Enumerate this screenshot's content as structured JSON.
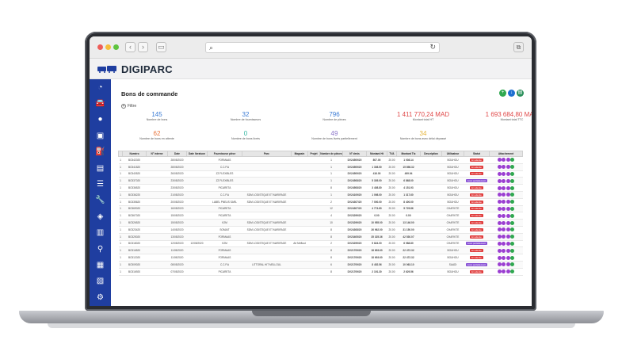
{
  "app": {
    "logo_text": "DIGIPARC",
    "page_title": "Bons de commande",
    "filter_label": "Filtre"
  },
  "browser": {
    "url": ""
  },
  "sidebar": {
    "items": [
      "dashboard-icon",
      "car-icon",
      "user-icon",
      "bus-icon",
      "fuel-icon",
      "document-icon",
      "list-icon",
      "wrench-icon",
      "layers-icon",
      "building-icon",
      "map-pin-icon",
      "truck-icon",
      "file-icon",
      "gear-icon"
    ]
  },
  "actions": [
    {
      "name": "add-button",
      "glyph": "+",
      "color": "#2fa84f"
    },
    {
      "name": "export-button",
      "glyph": "↓",
      "color": "#1f6fd1"
    },
    {
      "name": "print-button",
      "glyph": "▤",
      "color": "#2a8f5a"
    }
  ],
  "stats": [
    {
      "value": "145",
      "label": "Nombre de bons",
      "color": "#3a7bd5"
    },
    {
      "value": "32",
      "label": "Nombre de fournisseurs",
      "color": "#3a7bd5"
    },
    {
      "value": "796",
      "label": "Nombre de pièces",
      "color": "#3a7bd5"
    },
    {
      "value": "1 411 770,24 MAD",
      "label": "Montant total HT",
      "color": "#e04848"
    },
    {
      "value": "1 693 684,80 MAD",
      "label": "Montant total TTC",
      "color": "#e04848"
    },
    {
      "value": "62",
      "label": "Nombre de bons en attente",
      "color": "#e8733a"
    },
    {
      "value": "0",
      "label": "Nombre de bons livrés",
      "color": "#2fb5a0"
    },
    {
      "value": "49",
      "label": "Nombre de bons livrés partiellement",
      "color": "#8a73c9"
    },
    {
      "value": "34",
      "label": "Nombre de bons avec délai dépassé",
      "color": "#e6b43a"
    }
  ],
  "table": {
    "headers": [
      "",
      "Numéro",
      "N° interne",
      "Date",
      "Date livraison",
      "Fournisseur pièce",
      "Parc",
      "Magasin",
      "Projet",
      "Nombre de pièces",
      "N° devis",
      "Montant Ht",
      "TVA",
      "Montant Ttc",
      "Description",
      "Utilisateur",
      "Statut",
      "Attachement"
    ],
    "rows": [
      [
        "1",
        "BC542020",
        "",
        "28/05/2020",
        "",
        "FORMAAS",
        "",
        "",
        "",
        "1",
        "DV24509/20",
        "807.00",
        "20.00",
        "1 008.14",
        "",
        "BOUHOU",
        "En attente"
      ],
      [
        "1",
        "BC541820",
        "",
        "28/05/2020",
        "",
        "C.C.P.A",
        "",
        "",
        "",
        "1",
        "DV24509/20",
        "1 308.50",
        "20.00",
        "15 898.32",
        "",
        "BOUHOU",
        "En attente"
      ],
      [
        "1",
        "BC540520",
        "",
        "26/05/2020",
        "",
        "ZZ FLEXIBLES",
        "",
        "",
        "",
        "1",
        "DV24509/20",
        "416.00",
        "20.00",
        "499.94",
        "",
        "BOUHOU",
        "En attente"
      ],
      [
        "1",
        "BC537020",
        "",
        "23/05/2020",
        "",
        "ZZ FLEXIBLES",
        "",
        "",
        "",
        "1",
        "DV24508/20",
        "5 305.00",
        "20.00",
        "6 868.00",
        "",
        "BOUHOU",
        "Livré partiellement"
      ],
      [
        "1",
        "BC536520",
        "",
        "23/05/2020",
        "",
        "PICARETA",
        "",
        "",
        "",
        "8",
        "DV24508/20",
        "3 408.80",
        "20.00",
        "4 151.93",
        "",
        "BOUHOU",
        "En attente"
      ],
      [
        "1",
        "BC536220",
        "",
        "21/05/2020",
        "",
        "C.C.P.A",
        "SDM LOGISTIQUE ET MARIFAGE",
        "",
        "",
        "1",
        "DV24109/20",
        "1 098.00",
        "20.00",
        "1 317.60",
        "",
        "BOUHOU",
        "En attente"
      ],
      [
        "1",
        "BC535620",
        "",
        "20/05/2020",
        "",
        "LABEL PNEUS SARL",
        "SDM LOGISTIQUE ET MARIFAGE",
        "",
        "",
        "2",
        "DV24307/20",
        "7 000.00",
        "20.00",
        "8 400.00",
        "",
        "BOUHOU",
        "En attente"
      ],
      [
        "1",
        "BC569020",
        "",
        "16/05/2020",
        "",
        "PICARETA",
        "",
        "",
        "",
        "12",
        "DV24307/20",
        "4 774.80",
        "20.00",
        "5 729.86",
        "",
        "CHAFIKTE",
        "En attente"
      ],
      [
        "1",
        "BC567020",
        "",
        "15/05/2020",
        "",
        "PICARETA",
        "",
        "",
        "",
        "4",
        "DV23299/20",
        "0.00",
        "20.00",
        "0.00",
        "",
        "CHAFIKTE",
        "En attente"
      ],
      [
        "1",
        "BC526520",
        "",
        "15/05/2020",
        "",
        "K2M",
        "SDM LOGISTIQUE ET MARIFAGE",
        "",
        "",
        "10",
        "DV23299/20",
        "10 955.00",
        "20.00",
        "13 146.00",
        "",
        "CHAFIKTE",
        "En attente"
      ],
      [
        "1",
        "BC523420",
        "",
        "14/05/2020",
        "",
        "SOMAIT",
        "SDM LOGISTIQUE ET MARIFAGE",
        "",
        "",
        "8",
        "DV24308/20",
        "26 962.00",
        "20.00",
        "31 150.00",
        "",
        "CHAFIKTE",
        "En attente"
      ],
      [
        "1",
        "BC525020",
        "",
        "13/05/2020",
        "",
        "FORMAAS",
        "",
        "",
        "",
        "8",
        "DV23405/20",
        "35 325.36",
        "20.00",
        "42 530.07",
        "",
        "CHAFIKTE",
        "En attente"
      ],
      [
        "1",
        "BC518020",
        "",
        "12/05/2020",
        "12/05/2020",
        "K2M",
        "SDM LOGISTIQUE ET MARIFAGE",
        "Art Meftout",
        "",
        "2",
        "DV23299/20",
        "5 824.00",
        "20.00",
        "6 988.80",
        "",
        "CHAFIKTE",
        "Livré partiellement"
      ],
      [
        "1",
        "BC516520",
        "",
        "11/05/2020",
        "",
        "FORMAAS",
        "",
        "",
        "",
        "8",
        "DV21709/20",
        "18 693.60",
        "20.00",
        "22 472.32",
        "",
        "BOUHOU",
        "En attente"
      ],
      [
        "1",
        "BC512020",
        "",
        "11/05/2020",
        "",
        "FORMAAS",
        "",
        "",
        "",
        "8",
        "DV21709/20",
        "18 693.60",
        "20.00",
        "22 472.32",
        "",
        "BOUHOU",
        "En attente"
      ],
      [
        "1",
        "BC509020",
        "",
        "08/05/2020",
        "",
        "C.C.P.A",
        "LITTORAL HIT MELLOUL",
        "",
        "",
        "6",
        "DV21709/20",
        "8 452.56",
        "20.00",
        "10 063.10",
        "",
        "SAADI",
        "Livré partiellement"
      ],
      [
        "1",
        "BC516920",
        "",
        "07/05/2020",
        "",
        "PICARETA",
        "",
        "",
        "",
        "8",
        "DV21709/20",
        "2 191.30",
        "20.00",
        "2 629.56",
        "",
        "BOUHOU",
        "En attente"
      ]
    ]
  }
}
